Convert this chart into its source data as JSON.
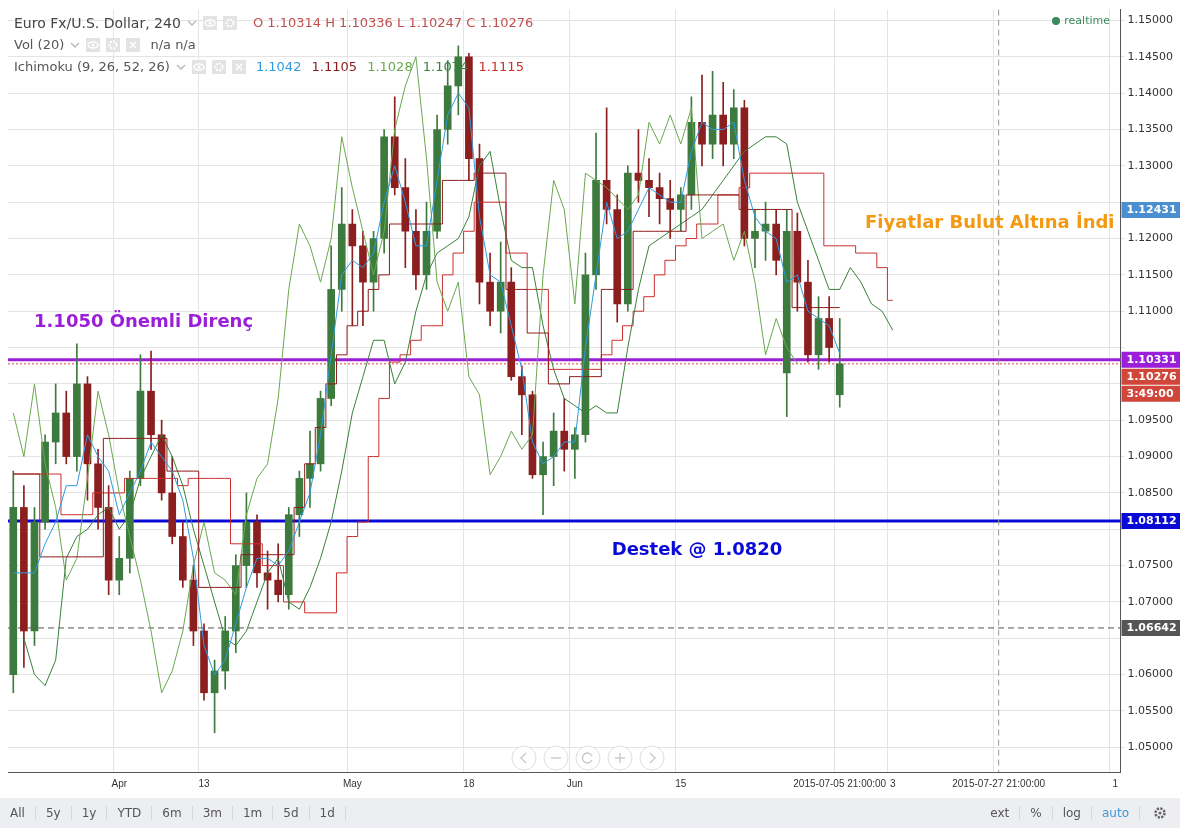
{
  "chart_data": {
    "type": "candlestick",
    "title": "Euro Fx/U.S. Dollar, 240",
    "categories": [
      null,
      null,
      null,
      null,
      null,
      null,
      null,
      null,
      null,
      null,
      "Apr",
      null,
      null,
      null,
      null,
      null,
      null,
      null,
      "13",
      null,
      null,
      null,
      null,
      null,
      null,
      null,
      null,
      null,
      null,
      null,
      null,
      null,
      "May",
      null,
      null,
      null,
      null,
      null,
      null,
      null,
      null,
      null,
      null,
      "18",
      null,
      null,
      null,
      null,
      null,
      null,
      null,
      null,
      null,
      "Jun",
      null,
      null,
      null,
      null,
      null,
      null,
      null,
      null,
      null,
      "15",
      null,
      null,
      null,
      null,
      null,
      null,
      null,
      null,
      null,
      null,
      null,
      null,
      null,
      null,
      "2015-07-05 21:00:00",
      null,
      null,
      null,
      null,
      "3",
      null,
      null,
      null,
      null,
      null,
      null,
      null,
      null,
      null,
      "2015-07-27 21:00:00",
      null,
      null,
      null,
      null,
      null,
      null,
      null,
      null,
      null,
      null,
      "1"
    ],
    "ohlc": [
      [
        1.06,
        1.088,
        1.0575,
        1.083
      ],
      [
        1.083,
        1.086,
        1.061,
        1.066
      ],
      [
        1.066,
        1.083,
        1.064,
        1.081
      ],
      [
        1.081,
        1.093,
        1.08,
        1.092
      ],
      [
        1.092,
        1.1,
        1.089,
        1.096
      ],
      [
        1.096,
        1.099,
        1.089,
        1.09
      ],
      [
        1.09,
        1.1055,
        1.088,
        1.1
      ],
      [
        1.1,
        1.101,
        1.084,
        1.089
      ],
      [
        1.089,
        1.091,
        1.08,
        1.083
      ],
      [
        1.083,
        1.086,
        1.071,
        1.073
      ],
      [
        1.073,
        1.079,
        1.071,
        1.076
      ],
      [
        1.076,
        1.088,
        1.074,
        1.087
      ],
      [
        1.087,
        1.104,
        1.086,
        1.099
      ],
      [
        1.099,
        1.1045,
        1.091,
        1.093
      ],
      [
        1.093,
        1.095,
        1.084,
        1.085
      ],
      [
        1.085,
        1.09,
        1.078,
        1.079
      ],
      [
        1.079,
        1.081,
        1.072,
        1.073
      ],
      [
        1.073,
        1.075,
        1.064,
        1.066
      ],
      [
        1.066,
        1.067,
        1.0565,
        1.0575
      ],
      [
        1.0575,
        1.062,
        1.052,
        1.0605
      ],
      [
        1.0605,
        1.068,
        1.058,
        1.066
      ],
      [
        1.066,
        1.0765,
        1.063,
        1.075
      ],
      [
        1.075,
        1.085,
        1.072,
        1.081
      ],
      [
        1.081,
        1.082,
        1.072,
        1.074
      ],
      [
        1.074,
        1.077,
        1.069,
        1.073
      ],
      [
        1.073,
        1.078,
        1.07,
        1.071
      ],
      [
        1.071,
        1.083,
        1.069,
        1.082
      ],
      [
        1.082,
        1.088,
        1.079,
        1.087
      ],
      [
        1.087,
        1.0935,
        1.083,
        1.089
      ],
      [
        1.089,
        1.099,
        1.088,
        1.098
      ],
      [
        1.098,
        1.119,
        1.097,
        1.113
      ],
      [
        1.113,
        1.127,
        1.11,
        1.122
      ],
      [
        1.122,
        1.124,
        1.108,
        1.119
      ],
      [
        1.119,
        1.121,
        1.108,
        1.114
      ],
      [
        1.114,
        1.121,
        1.11,
        1.12
      ],
      [
        1.12,
        1.135,
        1.118,
        1.134
      ],
      [
        1.134,
        1.1395,
        1.126,
        1.127
      ],
      [
        1.127,
        1.131,
        1.116,
        1.121
      ],
      [
        1.121,
        1.124,
        1.113,
        1.115
      ],
      [
        1.115,
        1.125,
        1.113,
        1.121
      ],
      [
        1.121,
        1.137,
        1.12,
        1.135
      ],
      [
        1.135,
        1.1445,
        1.133,
        1.141
      ],
      [
        1.141,
        1.1465,
        1.137,
        1.145
      ],
      [
        1.145,
        1.1455,
        1.128,
        1.131
      ],
      [
        1.131,
        1.133,
        1.111,
        1.114
      ],
      [
        1.114,
        1.118,
        1.108,
        1.11
      ],
      [
        1.11,
        1.1195,
        1.107,
        1.114
      ],
      [
        1.114,
        1.116,
        1.1005,
        1.101
      ],
      [
        1.101,
        1.1025,
        1.093,
        1.0985
      ],
      [
        1.0985,
        1.099,
        1.087,
        1.0875
      ],
      [
        1.0875,
        1.092,
        1.082,
        1.09
      ],
      [
        1.09,
        1.096,
        1.086,
        1.0935
      ],
      [
        1.0935,
        1.098,
        1.088,
        1.091
      ],
      [
        1.091,
        1.094,
        1.087,
        1.093
      ],
      [
        1.093,
        1.118,
        1.092,
        1.115
      ],
      [
        1.115,
        1.1345,
        1.113,
        1.128
      ],
      [
        1.128,
        1.138,
        1.122,
        1.124
      ],
      [
        1.124,
        1.126,
        1.1085,
        1.111
      ],
      [
        1.111,
        1.13,
        1.11,
        1.129
      ],
      [
        1.129,
        1.135,
        1.125,
        1.128
      ],
      [
        1.128,
        1.131,
        1.123,
        1.127
      ],
      [
        1.127,
        1.129,
        1.122,
        1.1255
      ],
      [
        1.1255,
        1.128,
        1.12,
        1.124
      ],
      [
        1.124,
        1.127,
        1.121,
        1.126
      ],
      [
        1.126,
        1.1395,
        1.124,
        1.136
      ],
      [
        1.136,
        1.1425,
        1.13,
        1.133
      ],
      [
        1.133,
        1.143,
        1.131,
        1.137
      ],
      [
        1.137,
        1.1415,
        1.13,
        1.133
      ],
      [
        1.133,
        1.1405,
        1.131,
        1.138
      ],
      [
        1.138,
        1.139,
        1.119,
        1.12
      ],
      [
        1.12,
        1.124,
        1.116,
        1.121
      ],
      [
        1.121,
        1.125,
        1.117,
        1.122
      ],
      [
        1.122,
        1.124,
        1.115,
        1.117
      ],
      [
        1.1015,
        1.124,
        1.0955,
        1.121
      ],
      [
        1.121,
        1.1235,
        1.11,
        1.114
      ],
      [
        1.114,
        1.117,
        1.103,
        1.104
      ],
      [
        1.104,
        1.112,
        1.102,
        1.109
      ],
      [
        1.109,
        1.112,
        1.103,
        1.105
      ],
      [
        1.0985,
        1.109,
        1.0968,
        1.10276
      ],
      null,
      null,
      null,
      null,
      null,
      null,
      null,
      null,
      null,
      null,
      null,
      null,
      null,
      null,
      null,
      null,
      null,
      null,
      null,
      null,
      null,
      null,
      null,
      null,
      null,
      null
    ],
    "colors": [
      "#3d7a3d",
      "#8b1e1e",
      "#3d7a3d",
      "#3d7a3d",
      "#3d7a3d",
      "#8b1e1e",
      "#3d7a3d",
      "#8b1e1e",
      "#8b1e1e",
      "#8b1e1e",
      "#3d7a3d",
      "#3d7a3d",
      "#3d7a3d",
      "#8b1e1e",
      "#8b1e1e",
      "#8b1e1e",
      "#8b1e1e",
      "#8b1e1e",
      "#8b1e1e",
      "#3d7a3d",
      "#3d7a3d",
      "#3d7a3d",
      "#3d7a3d",
      "#8b1e1e",
      "#8b1e1e",
      "#8b1e1e",
      "#3d7a3d",
      "#3d7a3d",
      "#3d7a3d",
      "#3d7a3d",
      "#3d7a3d",
      "#3d7a3d",
      "#8b1e1e",
      "#8b1e1e",
      "#3d7a3d",
      "#3d7a3d",
      "#8b1e1e",
      "#8b1e1e",
      "#8b1e1e",
      "#3d7a3d",
      "#3d7a3d",
      "#3d7a3d",
      "#3d7a3d",
      "#8b1e1e",
      "#8b1e1e",
      "#8b1e1e",
      "#3d7a3d",
      "#8b1e1e",
      "#8b1e1e",
      "#8b1e1e",
      "#3d7a3d",
      "#3d7a3d",
      "#8b1e1e",
      "#3d7a3d",
      "#3d7a3d",
      "#3d7a3d",
      "#8b1e1e",
      "#8b1e1e",
      "#3d7a3d",
      "#8b1e1e",
      "#8b1e1e",
      "#8b1e1e",
      "#8b1e1e",
      "#3d7a3d",
      "#3d7a3d",
      "#8b1e1e",
      "#3d7a3d",
      "#8b1e1e",
      "#3d7a3d",
      "#8b1e1e",
      "#3d7a3d",
      "#3d7a3d",
      "#8b1e1e",
      "#3d7a3d",
      "#8b1e1e",
      "#8b1e1e",
      "#3d7a3d",
      "#8b1e1e",
      "#3d7a3d",
      null,
      null,
      null,
      null,
      null,
      null,
      null,
      null,
      null,
      null,
      null,
      null,
      null,
      null,
      null,
      null,
      null,
      null,
      null,
      null,
      null,
      null,
      null,
      null,
      null,
      null
    ],
    "series": [
      {
        "type": "line",
        "color": "#2f9be0",
        "values": [
          1.074,
          1.074,
          1.074,
          1.078,
          1.081,
          1.086,
          1.086,
          1.093,
          1.09,
          1.088,
          1.082,
          1.085,
          1.088,
          1.092,
          1.09,
          1.088,
          1.084,
          1.076,
          1.064,
          1.06,
          1.062,
          1.067,
          1.072,
          1.076,
          1.076,
          1.075,
          1.077,
          1.081,
          1.085,
          1.093,
          1.104,
          1.115,
          1.117,
          1.116,
          1.118,
          1.125,
          1.13,
          1.125,
          1.119,
          1.119,
          1.128,
          1.137,
          1.14,
          1.138,
          1.123,
          1.115,
          1.114,
          1.108,
          1.102,
          1.092,
          1.089,
          1.09,
          1.092,
          1.092,
          1.105,
          1.115,
          1.125,
          1.12,
          1.121,
          1.124,
          1.127,
          1.126,
          1.125,
          1.125,
          1.132,
          1.136,
          1.135,
          1.135,
          1.136,
          1.128,
          1.123,
          1.121,
          1.12,
          1.114,
          1.115,
          1.11,
          1.109,
          1.108,
          1.1042,
          null,
          null,
          null,
          null,
          null,
          null,
          null,
          null,
          null,
          null,
          null,
          null,
          null,
          null,
          null,
          null,
          null,
          null,
          null,
          null,
          null,
          null,
          null,
          null,
          null,
          null
        ]
      },
      {
        "type": "step",
        "color": "#8e1b1b",
        "values": [
          1.0876,
          1.0876,
          1.0876,
          1.0762,
          1.0762,
          1.0762,
          1.0762,
          1.0762,
          1.0762,
          1.0925,
          1.0925,
          1.0925,
          1.0925,
          1.0925,
          1.0925,
          1.088,
          1.088,
          1.088,
          1.072,
          1.072,
          1.072,
          1.072,
          1.0765,
          1.0765,
          1.0765,
          1.0765,
          1.0765,
          1.083,
          1.089,
          1.094,
          1.1,
          1.104,
          1.108,
          1.11,
          1.113,
          1.115,
          1.122,
          1.122,
          1.122,
          1.122,
          1.122,
          1.128,
          1.128,
          1.128,
          1.129,
          1.129,
          1.129,
          1.113,
          1.113,
          1.107,
          1.107,
          1.1,
          1.1,
          1.101,
          1.101,
          1.101,
          1.113,
          1.113,
          1.113,
          1.121,
          1.121,
          1.121,
          1.121,
          1.121,
          1.126,
          1.126,
          1.126,
          1.126,
          1.126,
          1.124,
          1.124,
          1.124,
          1.124,
          1.124,
          1.1105,
          1.1105,
          1.1105,
          1.1105,
          1.1105,
          null,
          null,
          null,
          null,
          null,
          null,
          null,
          null,
          null,
          null,
          null,
          null,
          null,
          null,
          null,
          null,
          null,
          null,
          null,
          null,
          null,
          null,
          null,
          null,
          null,
          null
        ]
      },
      {
        "type": "line",
        "color": "#6aa84f",
        "values": [
          1.096,
          1.09,
          1.1,
          1.089,
          1.083,
          1.073,
          1.076,
          1.087,
          1.099,
          1.093,
          1.085,
          1.079,
          1.073,
          1.066,
          1.0575,
          1.0605,
          1.066,
          1.075,
          1.081,
          1.074,
          1.073,
          1.071,
          1.082,
          1.087,
          1.089,
          1.098,
          1.113,
          1.122,
          1.119,
          1.114,
          1.12,
          1.134,
          1.127,
          1.121,
          1.115,
          1.121,
          1.135,
          1.141,
          1.145,
          1.131,
          1.114,
          1.11,
          1.114,
          1.101,
          1.0985,
          1.0875,
          1.09,
          1.0935,
          1.091,
          1.093,
          1.115,
          1.128,
          1.124,
          1.111,
          1.129,
          1.128,
          1.127,
          1.1255,
          1.124,
          1.126,
          1.136,
          1.133,
          1.137,
          1.133,
          1.138,
          1.12,
          1.121,
          1.122,
          1.117,
          1.121,
          1.114,
          1.104,
          1.109,
          1.105,
          1.1028,
          null,
          null,
          null,
          null,
          null,
          null,
          null,
          null,
          null,
          null,
          null,
          null,
          null,
          null,
          null,
          null,
          null,
          null,
          null,
          null,
          null,
          null,
          null,
          null,
          null,
          null,
          null,
          null,
          null,
          null
        ]
      },
      {
        "type": "line",
        "color": "#38813a",
        "values": [
          null,
          1.065,
          1.06,
          1.0585,
          1.062,
          1.076,
          1.079,
          1.08,
          1.082,
          1.083,
          1.08,
          1.082,
          1.087,
          1.09,
          1.093,
          1.09,
          1.086,
          1.08,
          1.075,
          1.07,
          1.065,
          1.064,
          1.066,
          1.07,
          1.074,
          1.076,
          1.07,
          1.069,
          1.072,
          1.076,
          1.081,
          1.088,
          1.096,
          1.101,
          1.106,
          1.106,
          1.1,
          1.103,
          1.11,
          1.115,
          1.118,
          1.119,
          1.12,
          1.123,
          1.13,
          1.132,
          1.124,
          1.117,
          1.116,
          1.116,
          1.108,
          1.102,
          1.098,
          1.097,
          1.096,
          1.097,
          1.096,
          1.096,
          1.105,
          1.113,
          1.119,
          1.12,
          1.121,
          1.122,
          1.123,
          1.124,
          1.126,
          1.128,
          1.13,
          1.132,
          1.133,
          1.134,
          1.134,
          1.133,
          1.125,
          1.121,
          1.117,
          1.113,
          1.113,
          1.116,
          1.114,
          1.111,
          1.11,
          1.1074,
          null,
          null,
          null,
          null,
          null,
          null,
          null,
          null,
          null,
          null,
          null,
          null,
          null,
          null,
          null,
          null,
          null,
          null,
          null,
          null,
          null
        ]
      },
      {
        "type": "step",
        "color": "#cc2e2e",
        "values": [
          1.0876,
          1.0876,
          1.0876,
          1.0876,
          1.0876,
          1.082,
          1.082,
          1.082,
          1.085,
          1.085,
          1.085,
          1.087,
          1.087,
          1.087,
          1.087,
          1.087,
          1.086,
          1.087,
          1.087,
          1.087,
          1.087,
          1.078,
          1.078,
          1.078,
          1.075,
          1.075,
          1.07,
          1.07,
          1.0685,
          1.0685,
          1.0685,
          1.074,
          1.079,
          1.081,
          1.09,
          1.098,
          1.103,
          1.104,
          1.106,
          1.108,
          1.108,
          1.115,
          1.118,
          1.121,
          1.125,
          1.125,
          1.125,
          1.118,
          1.118,
          1.113,
          1.113,
          1.102,
          1.102,
          1.102,
          1.102,
          1.102,
          1.104,
          1.106,
          1.108,
          1.11,
          1.112,
          1.115,
          1.117,
          1.119,
          1.12,
          1.122,
          1.122,
          1.126,
          1.126,
          1.127,
          1.129,
          1.129,
          1.129,
          1.129,
          1.129,
          1.129,
          1.129,
          1.119,
          1.119,
          1.119,
          1.118,
          1.118,
          1.116,
          1.1115,
          null,
          null,
          null,
          null,
          null,
          null,
          null,
          null,
          null,
          null,
          null,
          null,
          null,
          null,
          null,
          null,
          null,
          null,
          null,
          null,
          null
        ]
      }
    ],
    "ylim": [
      1.0466,
      1.1515
    ],
    "yticks": [
      {
        "value": 1.05,
        "label": "1.05000"
      },
      {
        "value": 1.055,
        "label": "1.05500"
      },
      {
        "value": 1.06,
        "label": "1.06000"
      },
      {
        "value": 1.065,
        "label": null
      },
      {
        "value": 1.07,
        "label": "1.07000"
      },
      {
        "value": 1.075,
        "label": "1.07500"
      },
      {
        "value": 1.08,
        "label": null
      },
      {
        "value": 1.085,
        "label": "1.08500"
      },
      {
        "value": 1.09,
        "label": "1.09000"
      },
      {
        "value": 1.095,
        "label": "1.09500"
      },
      {
        "value": 1.1,
        "label": null
      },
      {
        "value": 1.105,
        "label": null
      },
      {
        "value": 1.11,
        "label": "1.11000"
      },
      {
        "value": 1.115,
        "label": "1.11500"
      },
      {
        "value": 1.12,
        "label": "1.12000"
      },
      {
        "value": 1.125,
        "label": null
      },
      {
        "value": 1.13,
        "label": "1.13000"
      },
      {
        "value": 1.135,
        "label": "1.13500"
      },
      {
        "value": 1.14,
        "label": "1.14000"
      },
      {
        "value": 1.145,
        "label": "1.14500"
      },
      {
        "value": 1.15,
        "label": "1.15000"
      }
    ],
    "ref_lines": [
      {
        "axis": "y",
        "value": 1.06642,
        "label": "1.06642",
        "color": "#555555",
        "line_style": "dashed"
      },
      {
        "axis": "y",
        "value": 1.10276,
        "label": "1.10276",
        "color": "#d0463b",
        "line_style": "dotted"
      },
      {
        "axis": "y",
        "value": 1.10331,
        "label": "1.10331",
        "color": "#9b1fd8"
      },
      {
        "axis": "y",
        "value": 1.08112,
        "label": "1.08112",
        "color": "#0a0ad6"
      },
      {
        "axis": "x",
        "value": "2015-07-27 21:00:00",
        "color": "#999999",
        "line_style": "dashed"
      }
    ],
    "annotations": [
      "O 1.10314 H 1.10336 L 1.10247 C 1.10276",
      "Vol (20)",
      "n/a n/a",
      "Ichimoku (9, 26, 52, 26)",
      "1.1042",
      "1.1105",
      "1.1028",
      "1.1074",
      "1.1115",
      "1.1050 Önemli Direnç",
      "Destek @ 1.0820",
      "Fiyatlar Bulut Altına İndi",
      "1.12431",
      "realtime",
      "3:49:00",
      "All",
      "5y",
      "1y",
      "YTD",
      "6m",
      "3m",
      "1m",
      "5d",
      "1d",
      "ext",
      "%",
      "log",
      "auto"
    ],
    "grid": true,
    "marker": "none"
  }
}
